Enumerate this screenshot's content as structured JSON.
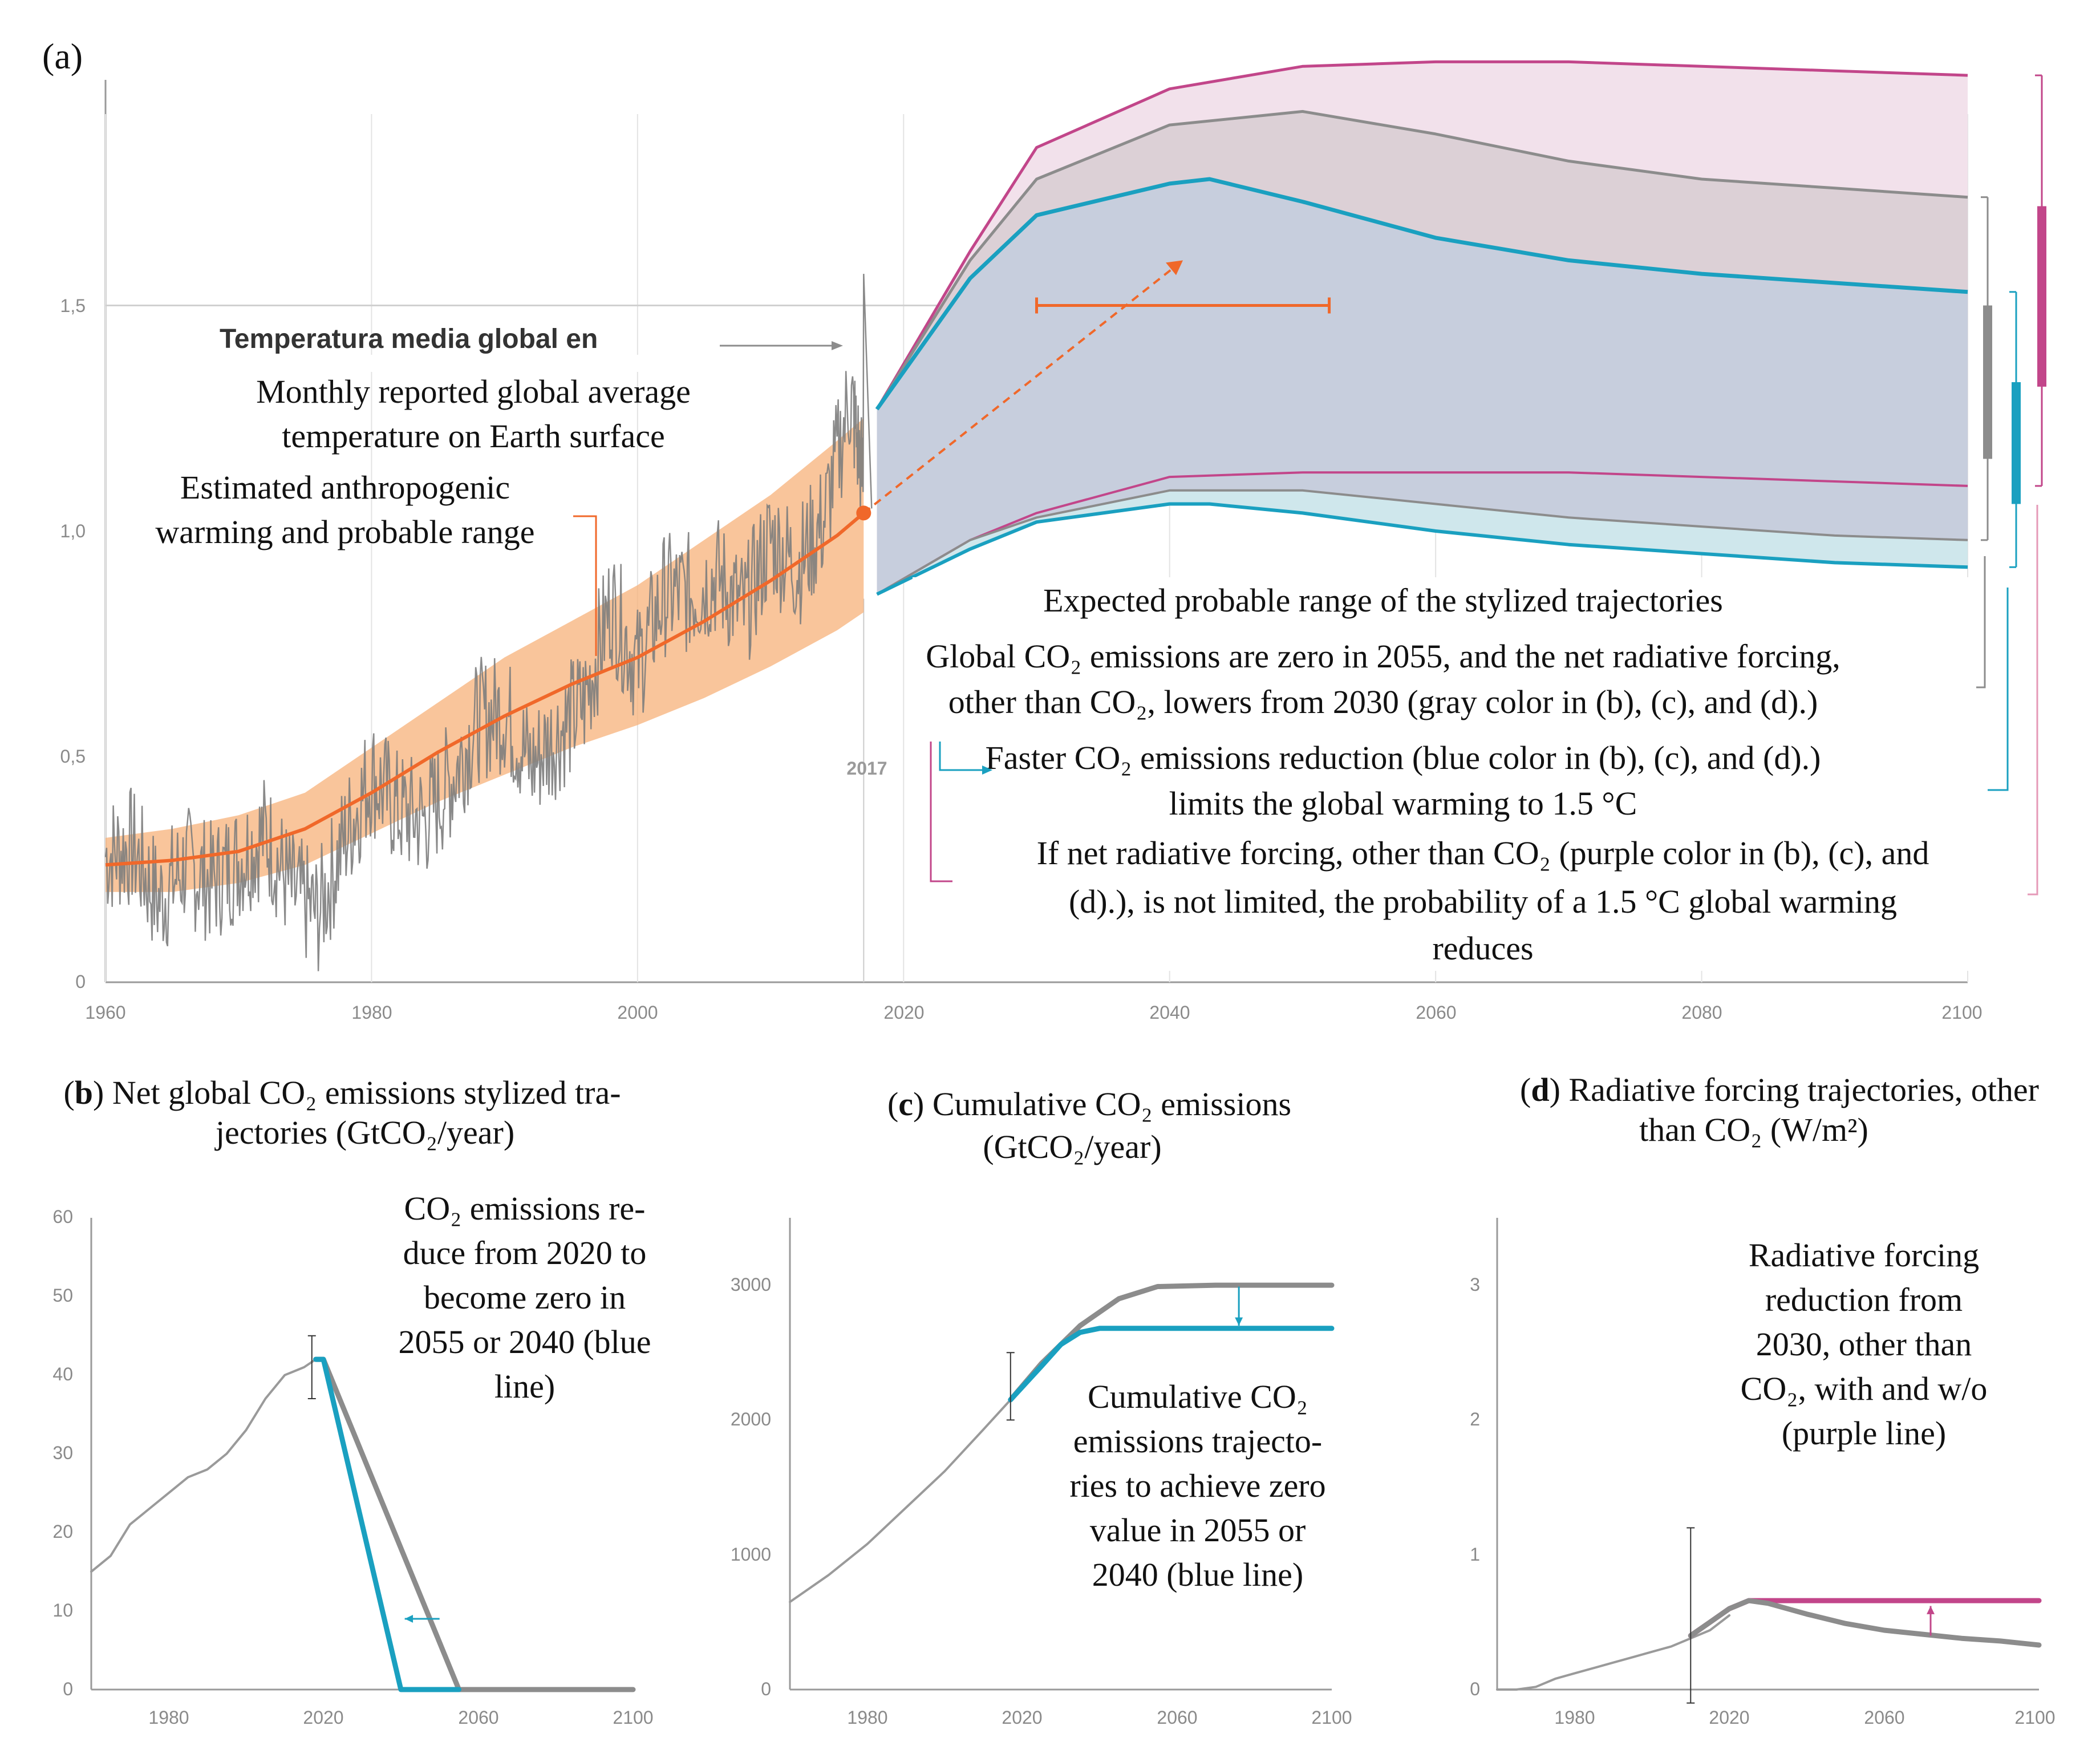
{
  "chart_data": [
    {
      "id": "a",
      "type": "area",
      "panel_label": "(a)",
      "xlim": [
        1960,
        2100
      ],
      "ylim": [
        0,
        2.0
      ],
      "x_ticks": [
        1960,
        1980,
        2000,
        2020,
        2040,
        2060,
        2080,
        2100
      ],
      "y_ticks": [
        0,
        0.5,
        1.0,
        1.5
      ],
      "x_tick_labels": [
        "1960",
        "1980",
        "2000",
        "2020",
        "2040",
        "2060",
        "2080",
        "2100"
      ],
      "y_tick_labels": [
        "0",
        "0,5",
        "1,0",
        "1,5"
      ],
      "reference_line_y": 1.5,
      "marker_year": 2017,
      "marker_year_label": "2017",
      "observed_monthly": {
        "name": "Monthly reported global average temperature",
        "color": "#7d7d7d",
        "x": [
          1960,
          1962,
          1964,
          1966,
          1968,
          1970,
          1972,
          1974,
          1976,
          1978,
          1980,
          1982,
          1984,
          1986,
          1988,
          1990,
          1992,
          1994,
          1996,
          1998,
          2000,
          2002,
          2004,
          2006,
          2008,
          2010,
          2012,
          2014,
          2016,
          2017
        ],
        "y": [
          0.28,
          0.3,
          0.18,
          0.26,
          0.22,
          0.27,
          0.33,
          0.2,
          0.15,
          0.32,
          0.46,
          0.38,
          0.36,
          0.45,
          0.58,
          0.6,
          0.48,
          0.55,
          0.62,
          0.84,
          0.7,
          0.86,
          0.86,
          0.9,
          0.82,
          0.98,
          0.92,
          1.02,
          1.3,
          1.1
        ]
      },
      "anthropogenic": {
        "name": "Estimated anthropogenic warming",
        "color": "#f0682a",
        "band_color": "#f7b27a",
        "x": [
          1960,
          1965,
          1970,
          1975,
          1980,
          1985,
          1990,
          1995,
          2000,
          2005,
          2010,
          2015,
          2017
        ],
        "y": [
          0.26,
          0.27,
          0.29,
          0.34,
          0.42,
          0.51,
          0.59,
          0.66,
          0.72,
          0.8,
          0.89,
          0.99,
          1.04
        ],
        "lower": [
          0.2,
          0.2,
          0.22,
          0.26,
          0.33,
          0.4,
          0.46,
          0.52,
          0.57,
          0.63,
          0.7,
          0.78,
          0.82
        ],
        "upper": [
          0.32,
          0.34,
          0.37,
          0.42,
          0.52,
          0.62,
          0.72,
          0.8,
          0.88,
          0.98,
          1.08,
          1.2,
          1.25
        ]
      },
      "extrapolation": {
        "x": [
          2017,
          2041
        ],
        "y": [
          1.04,
          1.6
        ],
        "color": "#f0682a"
      },
      "crossing_range": {
        "x": [
          2030,
          2052
        ],
        "y": 1.5,
        "color": "#f0682a"
      },
      "scenarios": [
        {
          "name": "purple",
          "color": "#c2468a",
          "fill": "#f2e1eb",
          "x": [
            2018,
            2025,
            2030,
            2040,
            2050,
            2060,
            2070,
            2080,
            2090,
            2100
          ],
          "upper": [
            1.27,
            1.62,
            1.85,
            1.98,
            2.03,
            2.04,
            2.04,
            2.03,
            2.02,
            2.01
          ],
          "lower": [
            0.86,
            0.98,
            1.04,
            1.12,
            1.13,
            1.13,
            1.13,
            1.12,
            1.11,
            1.1
          ]
        },
        {
          "name": "gray",
          "color": "#8c8c8c",
          "fill": "#dcd0d6",
          "x": [
            2018,
            2025,
            2030,
            2040,
            2050,
            2060,
            2070,
            2080,
            2090,
            2100
          ],
          "upper": [
            1.27,
            1.6,
            1.78,
            1.9,
            1.93,
            1.88,
            1.82,
            1.78,
            1.76,
            1.74
          ],
          "lower": [
            0.86,
            0.98,
            1.03,
            1.09,
            1.09,
            1.06,
            1.03,
            1.01,
            0.99,
            0.98
          ]
        },
        {
          "name": "blue",
          "color": "#1aa0c0",
          "fill": "#c7cedd",
          "x": [
            2018,
            2025,
            2030,
            2040,
            2043,
            2050,
            2060,
            2070,
            2080,
            2090,
            2100
          ],
          "upper": [
            1.27,
            1.56,
            1.7,
            1.77,
            1.78,
            1.73,
            1.65,
            1.6,
            1.57,
            1.55,
            1.53
          ],
          "lower": [
            0.86,
            0.96,
            1.02,
            1.06,
            1.06,
            1.04,
            1.0,
            0.97,
            0.95,
            0.93,
            0.92
          ],
          "lower_fill": "#cfe7ec"
        }
      ],
      "range_bars": [
        {
          "color": "#8c8c8c",
          "whisker": [
            0.98,
            1.74
          ],
          "box": [
            1.16,
            1.5
          ]
        },
        {
          "color": "#1aa0c0",
          "whisker": [
            0.92,
            1.53
          ],
          "box": [
            1.06,
            1.33
          ]
        },
        {
          "color": "#c2468a",
          "whisker": [
            1.1,
            2.01
          ],
          "box": [
            1.32,
            1.72
          ]
        }
      ],
      "annotations": {
        "spanish_label": "Temperatura media global en",
        "monthly_line1": "Monthly reported global average",
        "monthly_line2": "temperature on Earth surface",
        "anthro_line1": "Estimated anthropogenic",
        "anthro_line2": "warming and probable range",
        "expected": "Expected probable range of the stylized trajectories",
        "gray_line1": "Global CO₂ emissions are zero in 2055, and the net radiative forcing,",
        "gray_line2": "other than CO₂, lowers from 2030 (gray color in (b), (c), and (d).)",
        "blue_line1": "Faster CO₂ emissions reduction (blue color in (b), (c), and (d).)",
        "blue_line2": "limits the global warming to 1.5 °C",
        "purple_line1": "If net radiative forcing, other than CO₂ (purple color in (b), (c), and",
        "purple_line2": "(d).), is not limited, the probability of a 1.5 °C global warming",
        "purple_line3": "reduces"
      }
    },
    {
      "id": "b",
      "type": "line",
      "title_bold": "b",
      "title_line1": ") Net global CO₂ emissions stylized tra-",
      "title_line2": "jectories (GtCO₂/year)",
      "xlim": [
        1960,
        2100
      ],
      "ylim": [
        0,
        60
      ],
      "x_ticks": [
        1980,
        2020,
        2060,
        2100
      ],
      "y_ticks": [
        0,
        10,
        20,
        30,
        40,
        50,
        60
      ],
      "x_tick_labels": [
        "1980",
        "2020",
        "2060",
        "2100"
      ],
      "y_tick_labels": [
        "0",
        "10",
        "20",
        "30",
        "40",
        "50",
        "60"
      ],
      "series": [
        {
          "name": "historical",
          "color": "#9a9a9a",
          "x": [
            1960,
            1965,
            1970,
            1975,
            1980,
            1985,
            1990,
            1995,
            2000,
            2005,
            2010,
            2015,
            2018
          ],
          "y": [
            15,
            17,
            21,
            23,
            25,
            27,
            28,
            30,
            33,
            37,
            40,
            41,
            42
          ]
        },
        {
          "name": "gray",
          "color": "#8c8c8c",
          "x": [
            2018,
            2020,
            2055,
            2100
          ],
          "y": [
            42,
            42,
            0,
            0
          ]
        },
        {
          "name": "blue",
          "color": "#1aa0c0",
          "x": [
            2018,
            2020,
            2040,
            2055
          ],
          "y": [
            42,
            42,
            0,
            0
          ]
        }
      ],
      "error_bar": {
        "x": 2017,
        "y": [
          37,
          45
        ]
      },
      "arrow": {
        "from": [
          2050,
          9
        ],
        "to": [
          2041,
          9
        ]
      },
      "note": [
        "CO₂ emissions re-",
        "duce from 2020 to",
        "become zero in",
        "2055 or 2040 (blue",
        "line)"
      ]
    },
    {
      "id": "c",
      "type": "line",
      "title_bold": "c",
      "title_line1": ") Cumulative CO₂ emissions",
      "title_line2": "(GtCO₂/year)",
      "xlim": [
        1960,
        2100
      ],
      "ylim": [
        0,
        3500
      ],
      "x_ticks": [
        1980,
        2020,
        2060,
        2100
      ],
      "y_ticks": [
        0,
        1000,
        2000,
        3000
      ],
      "x_tick_labels": [
        "1980",
        "2020",
        "2060",
        "2100"
      ],
      "y_tick_labels": [
        "0",
        "1000",
        "2000",
        "3000"
      ],
      "series": [
        {
          "name": "historical",
          "color": "#9a9a9a",
          "x": [
            1960,
            1970,
            1980,
            1990,
            2000,
            2010,
            2017
          ],
          "y": [
            650,
            850,
            1080,
            1350,
            1620,
            1930,
            2150
          ]
        },
        {
          "name": "gray",
          "color": "#8c8c8c",
          "x": [
            2017,
            2025,
            2035,
            2045,
            2055,
            2070,
            2100
          ],
          "y": [
            2150,
            2420,
            2700,
            2900,
            2990,
            3000,
            3000
          ]
        },
        {
          "name": "blue",
          "color": "#1aa0c0",
          "x": [
            2017,
            2025,
            2030,
            2035,
            2040,
            2060,
            2100
          ],
          "y": [
            2150,
            2400,
            2560,
            2650,
            2680,
            2680,
            2680
          ]
        }
      ],
      "error_bar": {
        "x": 2017,
        "y": [
          2000,
          2500
        ]
      },
      "arrow": {
        "from": [
          2076,
          2990
        ],
        "to": [
          2076,
          2700
        ]
      },
      "note": [
        "Cumulative CO₂",
        "emissions trajecto-",
        "ries to achieve zero",
        "value in 2055 or",
        "2040 (blue line)"
      ]
    },
    {
      "id": "d",
      "type": "line",
      "title_bold": "d",
      "title_line1": ") Radiative forcing trajectories, other",
      "title_line2": "than CO₂ (W/m²)",
      "xlim": [
        1960,
        2100
      ],
      "ylim": [
        0,
        3.5
      ],
      "x_ticks": [
        1980,
        2020,
        2060,
        2100
      ],
      "y_ticks": [
        0,
        1,
        2,
        3
      ],
      "x_tick_labels": [
        "1980",
        "2020",
        "2060",
        "2100"
      ],
      "y_tick_labels": [
        "0",
        "1",
        "2",
        "3"
      ],
      "series": [
        {
          "name": "historical",
          "color": "#9a9a9a",
          "x": [
            1960,
            1965,
            1970,
            1975,
            1980,
            1985,
            1990,
            1995,
            2000,
            2005,
            2010,
            2015,
            2020
          ],
          "y": [
            0.0,
            0.0,
            0.02,
            0.08,
            0.12,
            0.16,
            0.2,
            0.24,
            0.28,
            0.32,
            0.38,
            0.44,
            0.55
          ]
        },
        {
          "name": "purple",
          "color": "#c2468a",
          "x": [
            2010,
            2015,
            2020,
            2025,
            2030,
            2100
          ],
          "y": [
            0.4,
            0.5,
            0.6,
            0.66,
            0.66,
            0.66
          ]
        },
        {
          "name": "gray",
          "color": "#8c8c8c",
          "x": [
            2010,
            2015,
            2020,
            2025,
            2030,
            2040,
            2050,
            2060,
            2070,
            2080,
            2090,
            2100
          ],
          "y": [
            0.4,
            0.5,
            0.6,
            0.66,
            0.64,
            0.56,
            0.49,
            0.44,
            0.41,
            0.38,
            0.36,
            0.33
          ]
        }
      ],
      "error_bar": {
        "x": 2010,
        "y": [
          -0.1,
          1.2
        ]
      },
      "arrow": {
        "from": [
          2072,
          0.4
        ],
        "to": [
          2072,
          0.62
        ]
      },
      "note": [
        "Radiative forcing",
        "reduction from",
        "2030, other than",
        "CO₂, with and w/o",
        "(purple line)"
      ]
    }
  ]
}
